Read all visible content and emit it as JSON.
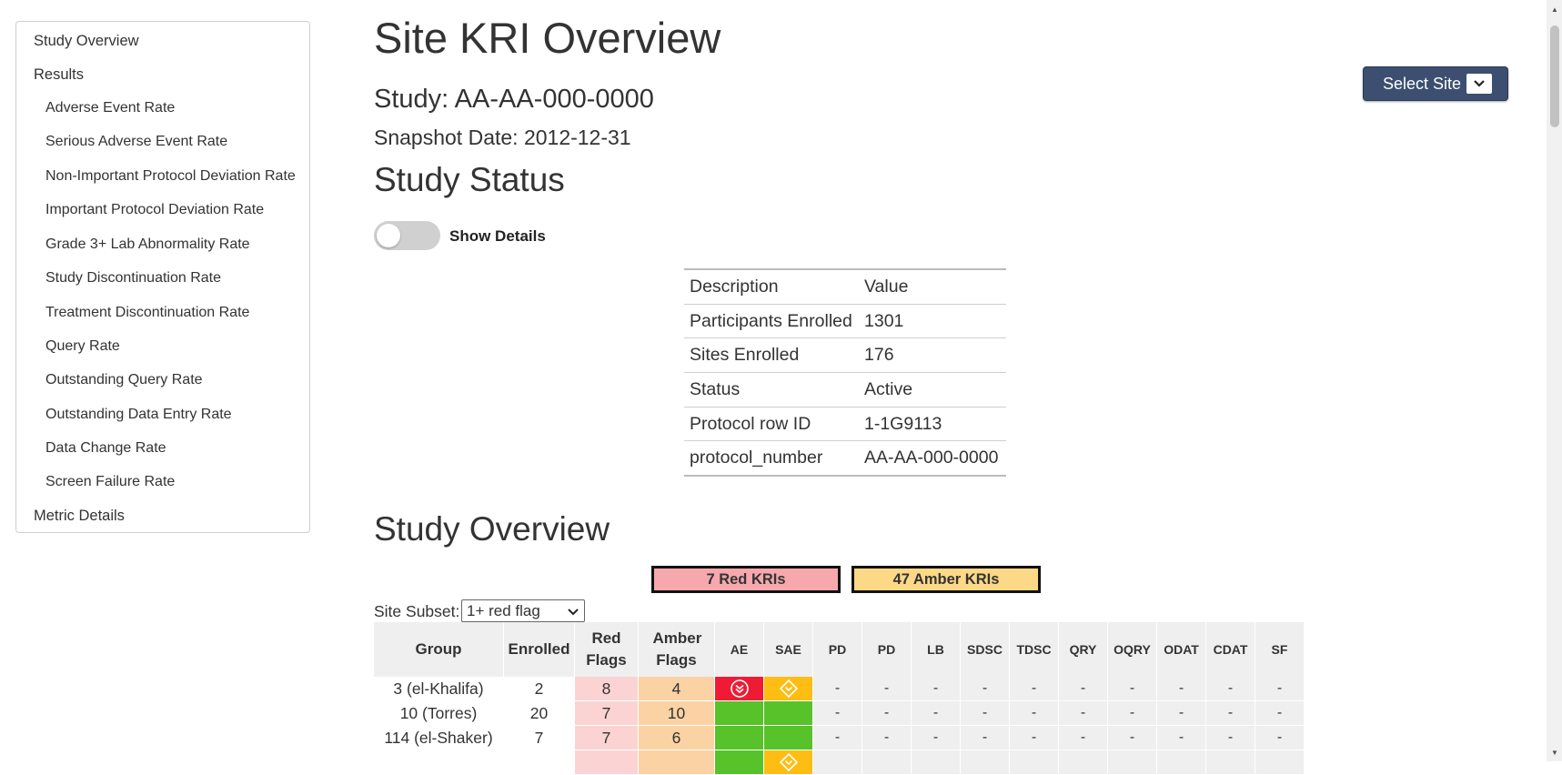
{
  "toc": {
    "items": [
      {
        "label": "Study Overview",
        "level": 1
      },
      {
        "label": "Results",
        "level": 1
      },
      {
        "label": "Adverse Event Rate",
        "level": 2
      },
      {
        "label": "Serious Adverse Event Rate",
        "level": 2
      },
      {
        "label": "Non-Important Protocol Deviation Rate",
        "level": 2
      },
      {
        "label": "Important Protocol Deviation Rate",
        "level": 2
      },
      {
        "label": "Grade 3+ Lab Abnormality Rate",
        "level": 2
      },
      {
        "label": "Study Discontinuation Rate",
        "level": 2
      },
      {
        "label": "Treatment Discontinuation Rate",
        "level": 2
      },
      {
        "label": "Query Rate",
        "level": 2
      },
      {
        "label": "Outstanding Query Rate",
        "level": 2
      },
      {
        "label": "Outstanding Data Entry Rate",
        "level": 2
      },
      {
        "label": "Data Change Rate",
        "level": 2
      },
      {
        "label": "Screen Failure Rate",
        "level": 2
      },
      {
        "label": "Metric Details",
        "level": 1
      }
    ]
  },
  "header": {
    "title": "Site KRI Overview",
    "study": "Study: AA-AA-000-0000",
    "snapshot": "Snapshot Date: 2012-12-31",
    "select_site_label": "Select Site"
  },
  "study_status": {
    "heading": "Study Status",
    "toggle_label": "Show Details",
    "toggle_on": false,
    "rows": [
      {
        "description": "Description",
        "value": "Value"
      },
      {
        "description": "Participants Enrolled",
        "value": "1301"
      },
      {
        "description": "Sites Enrolled",
        "value": "176"
      },
      {
        "description": "Status",
        "value": "Active"
      },
      {
        "description": "Protocol row ID",
        "value": "1-1G9113"
      },
      {
        "description": "protocol_number",
        "value": "AA-AA-000-0000"
      }
    ]
  },
  "study_overview": {
    "heading": "Study Overview",
    "red_kris": "7 Red KRIs",
    "amber_kris": "47 Amber KRIs",
    "subset_label": "Site Subset:",
    "subset_value": "1+ red flag",
    "columns": [
      "Group",
      "Enrolled",
      "Red Flags",
      "Amber Flags",
      "AE",
      "SAE",
      "PD",
      "PD",
      "LB",
      "SDSC",
      "TDSC",
      "QRY",
      "OQRY",
      "ODAT",
      "CDAT",
      "SF"
    ],
    "rows": [
      {
        "group": "3 (el-Khalifa)",
        "enrolled": "2",
        "red": "8",
        "amber": "4",
        "ae": "red",
        "sae": "amber",
        "rest": [
          "-",
          "-",
          "-",
          "-",
          "-",
          "-",
          "-",
          "-",
          "-",
          "-"
        ]
      },
      {
        "group": "10 (Torres)",
        "enrolled": "20",
        "red": "7",
        "amber": "10",
        "ae": "green",
        "sae": "green",
        "rest": [
          "-",
          "-",
          "-",
          "-",
          "-",
          "-",
          "-",
          "-",
          "-",
          "-"
        ]
      },
      {
        "group": "114 (el-Shaker)",
        "enrolled": "7",
        "red": "7",
        "amber": "6",
        "ae": "green",
        "sae": "green",
        "rest": [
          "-",
          "-",
          "-",
          "-",
          "-",
          "-",
          "-",
          "-",
          "-",
          "-"
        ]
      },
      {
        "group": "",
        "enrolled": "",
        "red": "",
        "amber": "",
        "ae": "green",
        "sae": "amber",
        "rest": [
          "",
          "",
          "",
          "",
          "",
          "",
          "",
          "",
          "",
          ""
        ]
      }
    ]
  },
  "colors": {
    "flag_red": "#ef1b35",
    "flag_amber": "#fdbd12",
    "flag_green": "#57c22a",
    "select_site_bg": "#3c4f70"
  }
}
